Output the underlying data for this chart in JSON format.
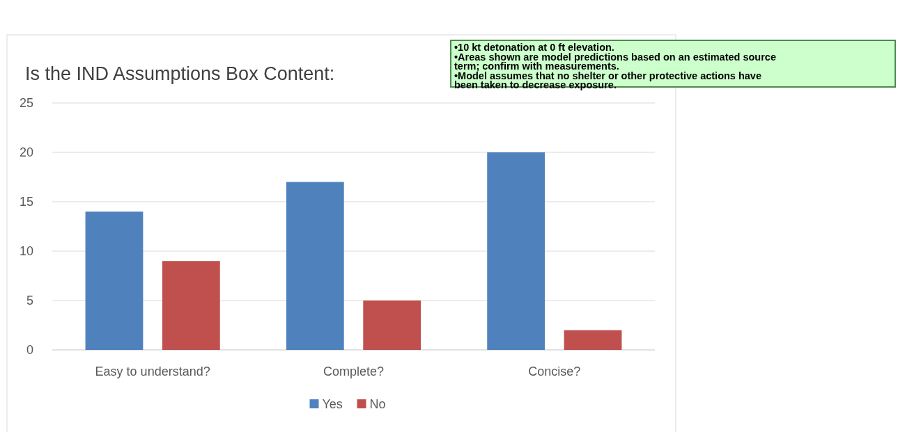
{
  "chart_data": {
    "type": "bar",
    "title": "Is the IND Assumptions Box Content:",
    "categories": [
      "Easy to understand?",
      "Complete?",
      "Concise?"
    ],
    "series": [
      {
        "name": "Yes",
        "color": "#4f81bd",
        "values": [
          14,
          17,
          20
        ]
      },
      {
        "name": "No",
        "color": "#c0504d",
        "values": [
          9,
          5,
          2
        ]
      }
    ],
    "ylim": [
      0,
      25
    ],
    "yticks": [
      0,
      5,
      10,
      15,
      20,
      25
    ],
    "grid": "y",
    "legend": "bottom",
    "annotations": [
      "•10 kt detonation at 0 ft elevation.\n•Areas shown are model predictions based on an estimated source\nterm; confirm with measurements.\n•Model assumes that no shelter or other protective actions have\nbeen taken to decrease exposure."
    ]
  }
}
